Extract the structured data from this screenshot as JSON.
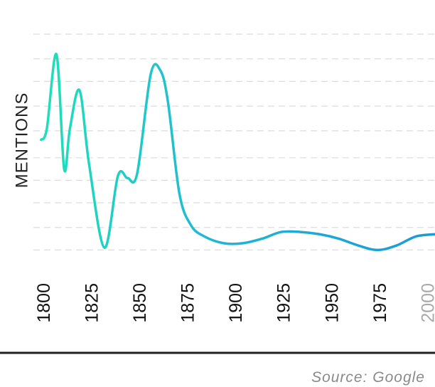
{
  "chart_data": {
    "type": "line",
    "title": "",
    "xlabel": "",
    "ylabel": "MENTIONS",
    "x_ticks": [
      "1800",
      "1825",
      "1850",
      "1875",
      "1900",
      "1925",
      "1950",
      "1975",
      "2000"
    ],
    "muted_ticks": [
      "2000"
    ],
    "xlim": [
      1796,
      2005
    ],
    "ylim": [
      0,
      100
    ],
    "grid": true,
    "y_gridlines": [
      100,
      89,
      79,
      68,
      57,
      45,
      35,
      25,
      14,
      4
    ],
    "line_gradient": [
      "#1fe0b8",
      "#1fb6d6",
      "#1b9ad6"
    ],
    "series": [
      {
        "name": "",
        "x": [
          1800,
          1803,
          1808,
          1812,
          1815,
          1820,
          1825,
          1833,
          1840,
          1845,
          1850,
          1857,
          1862,
          1866,
          1872,
          1878,
          1885,
          1895,
          1905,
          1915,
          1925,
          1935,
          1945,
          1955,
          1965,
          1975,
          1985,
          1995,
          2005
        ],
        "y": [
          53,
          58,
          91,
          40,
          58,
          75,
          42,
          5,
          37,
          36,
          38,
          82,
          84,
          70,
          29,
          15,
          10,
          7,
          7,
          9,
          12,
          12,
          11,
          9,
          6,
          4,
          6,
          10,
          11
        ]
      }
    ]
  },
  "footer": {
    "source": "Source: Google"
  }
}
